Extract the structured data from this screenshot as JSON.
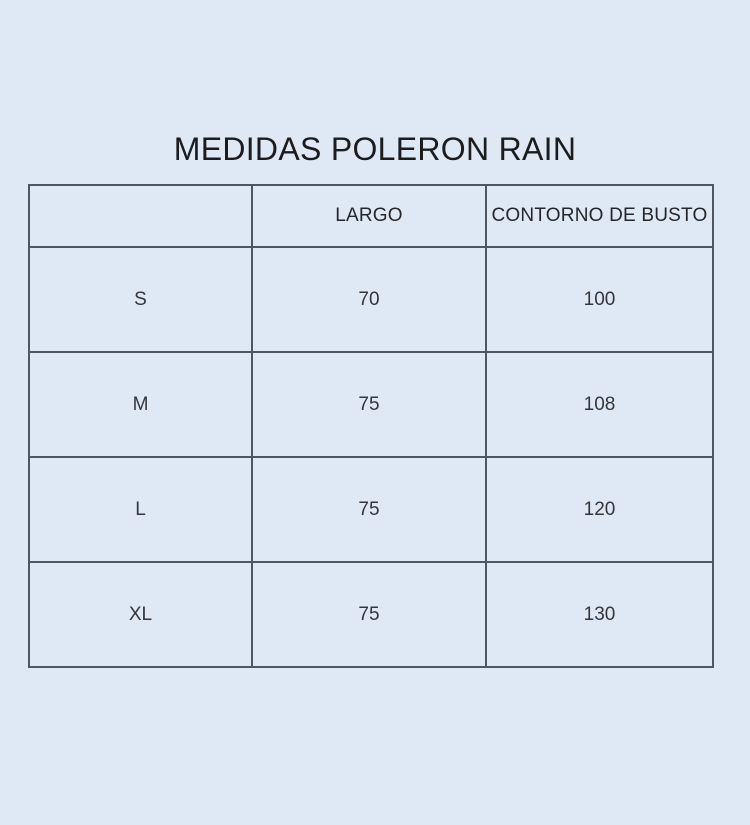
{
  "page": {
    "background_color": "#dfe9f5",
    "text_color": "#1c1c1e",
    "table_border_color": "#4e5661"
  },
  "chart_data": {
    "type": "table",
    "title": "MEDIDAS POLERON RAIN",
    "columns": [
      "",
      "LARGO",
      "CONTORNO DE BUSTO"
    ],
    "rows": [
      [
        "S",
        70,
        100
      ],
      [
        "M",
        75,
        108
      ],
      [
        "L",
        75,
        120
      ],
      [
        "XL",
        75,
        130
      ]
    ],
    "layout_hints": {
      "grid": "all-borders",
      "cell_alignment": "center",
      "first_column_is_size_label": true
    }
  }
}
